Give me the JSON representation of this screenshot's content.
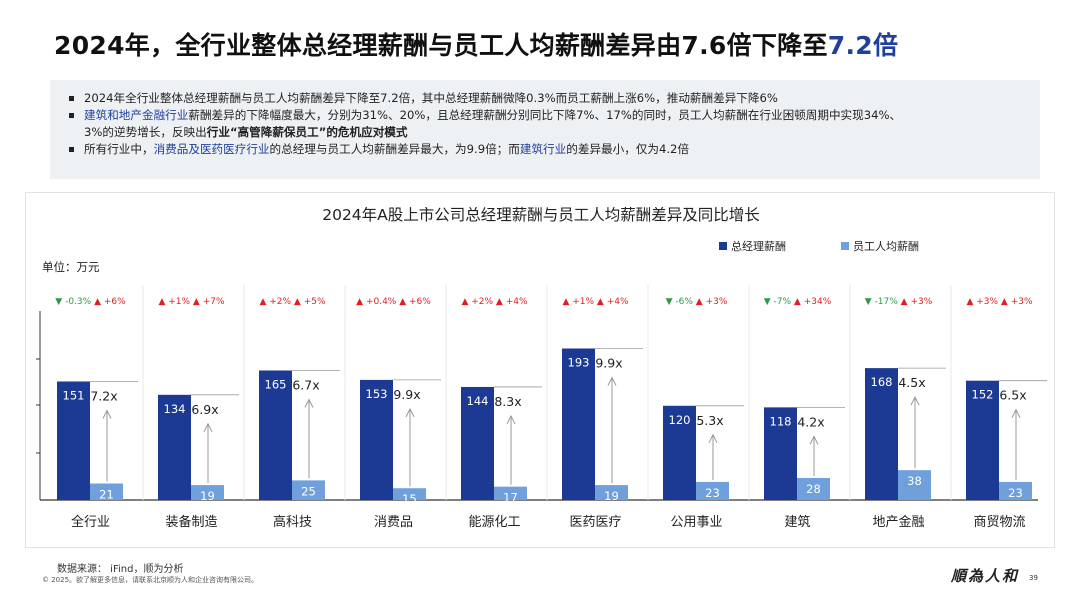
{
  "headline": {
    "main": "2024年，全行业整体总经理薪酬与员工人均薪酬差异由7.6倍下降至",
    "highlight": "7.2倍"
  },
  "summary": {
    "b1": "2024年全行业整体总经理薪酬与员工人均薪酬差异下降至7.2倍，其中总经理薪酬微降0.3%而员工薪酬上涨6%，推动薪酬差异下降6%",
    "b2_blue": "建筑和地产金融行业",
    "b2_line1": "薪酬差异的下降幅度最大，分别为31%、20%，且总经理薪酬分别同比下降7%、17%的同时，员工人均薪酬在行业困顿周期中实现34%、",
    "b2_line2_a": "3%的逆势增长，反映出",
    "b2_line2_bold": "行业“高管降薪保员工”的危机应对模式",
    "b3_a": "所有行业中，",
    "b3_blue1": "消费品及医药医疗行业",
    "b3_b": "的总经理与员工人均薪酬差异最大，为9.9倍；而",
    "b3_blue2": "建筑行业",
    "b3_c": "的差异最小，仅为4.2倍"
  },
  "chart_data": {
    "type": "bar",
    "title": "2024年A股上市公司总经理薪酬与员工人均薪酬差异及同比增长",
    "unit_label": "单位：万元",
    "legend_position": "top-right",
    "categories": [
      "全行业",
      "装备制造",
      "高科技",
      "消费品",
      "能源化工",
      "医药医疗",
      "公用事业",
      "建筑",
      "地产金融",
      "商贸物流"
    ],
    "series": [
      {
        "name": "总经理薪酬",
        "color": "#1c3a94",
        "values": [
          151,
          134,
          165,
          153,
          144,
          193,
          120,
          118,
          168,
          152
        ]
      },
      {
        "name": "员工人均薪酬",
        "color": "#6fa0dc",
        "values": [
          21,
          19,
          25,
          15,
          17,
          19,
          23,
          28,
          38,
          23
        ]
      }
    ],
    "ratio_labels": [
      "7.2x",
      "6.9x",
      "6.7x",
      "9.9x",
      "8.3x",
      "9.9x",
      "5.3x",
      "4.2x",
      "4.5x",
      "6.5x"
    ],
    "growth": [
      [
        {
          "dir": "down",
          "text": "-0.3%"
        },
        {
          "dir": "up",
          "text": "+6%"
        }
      ],
      [
        {
          "dir": "up",
          "text": "+1%"
        },
        {
          "dir": "up",
          "text": "+7%"
        }
      ],
      [
        {
          "dir": "up",
          "text": "+2%"
        },
        {
          "dir": "up",
          "text": "+5%"
        }
      ],
      [
        {
          "dir": "up",
          "text": "+0.4%"
        },
        {
          "dir": "up",
          "text": "+6%"
        }
      ],
      [
        {
          "dir": "up",
          "text": "+2%"
        },
        {
          "dir": "up",
          "text": "+4%"
        }
      ],
      [
        {
          "dir": "up",
          "text": "+1%"
        },
        {
          "dir": "up",
          "text": "+4%"
        }
      ],
      [
        {
          "dir": "down",
          "text": "-6%"
        },
        {
          "dir": "up",
          "text": "+3%"
        }
      ],
      [
        {
          "dir": "down",
          "text": "-7%"
        },
        {
          "dir": "up",
          "text": "+34%"
        }
      ],
      [
        {
          "dir": "down",
          "text": "-17%"
        },
        {
          "dir": "up",
          "text": "+3%"
        }
      ],
      [
        {
          "dir": "up",
          "text": "+3%"
        },
        {
          "dir": "up",
          "text": "+3%"
        }
      ]
    ],
    "ylim": [
      0,
      250
    ],
    "colors": {
      "up": "#e02020",
      "down": "#2e9a45",
      "arrow": "#9a9a9a"
    }
  },
  "footer": {
    "source": "数据来源： iFind，顺为分析",
    "copyright": "© 2025。欲了解更多信息，请联系北京顺为人和企业咨询有限公司。",
    "logo": "順為人和",
    "page": "39"
  }
}
